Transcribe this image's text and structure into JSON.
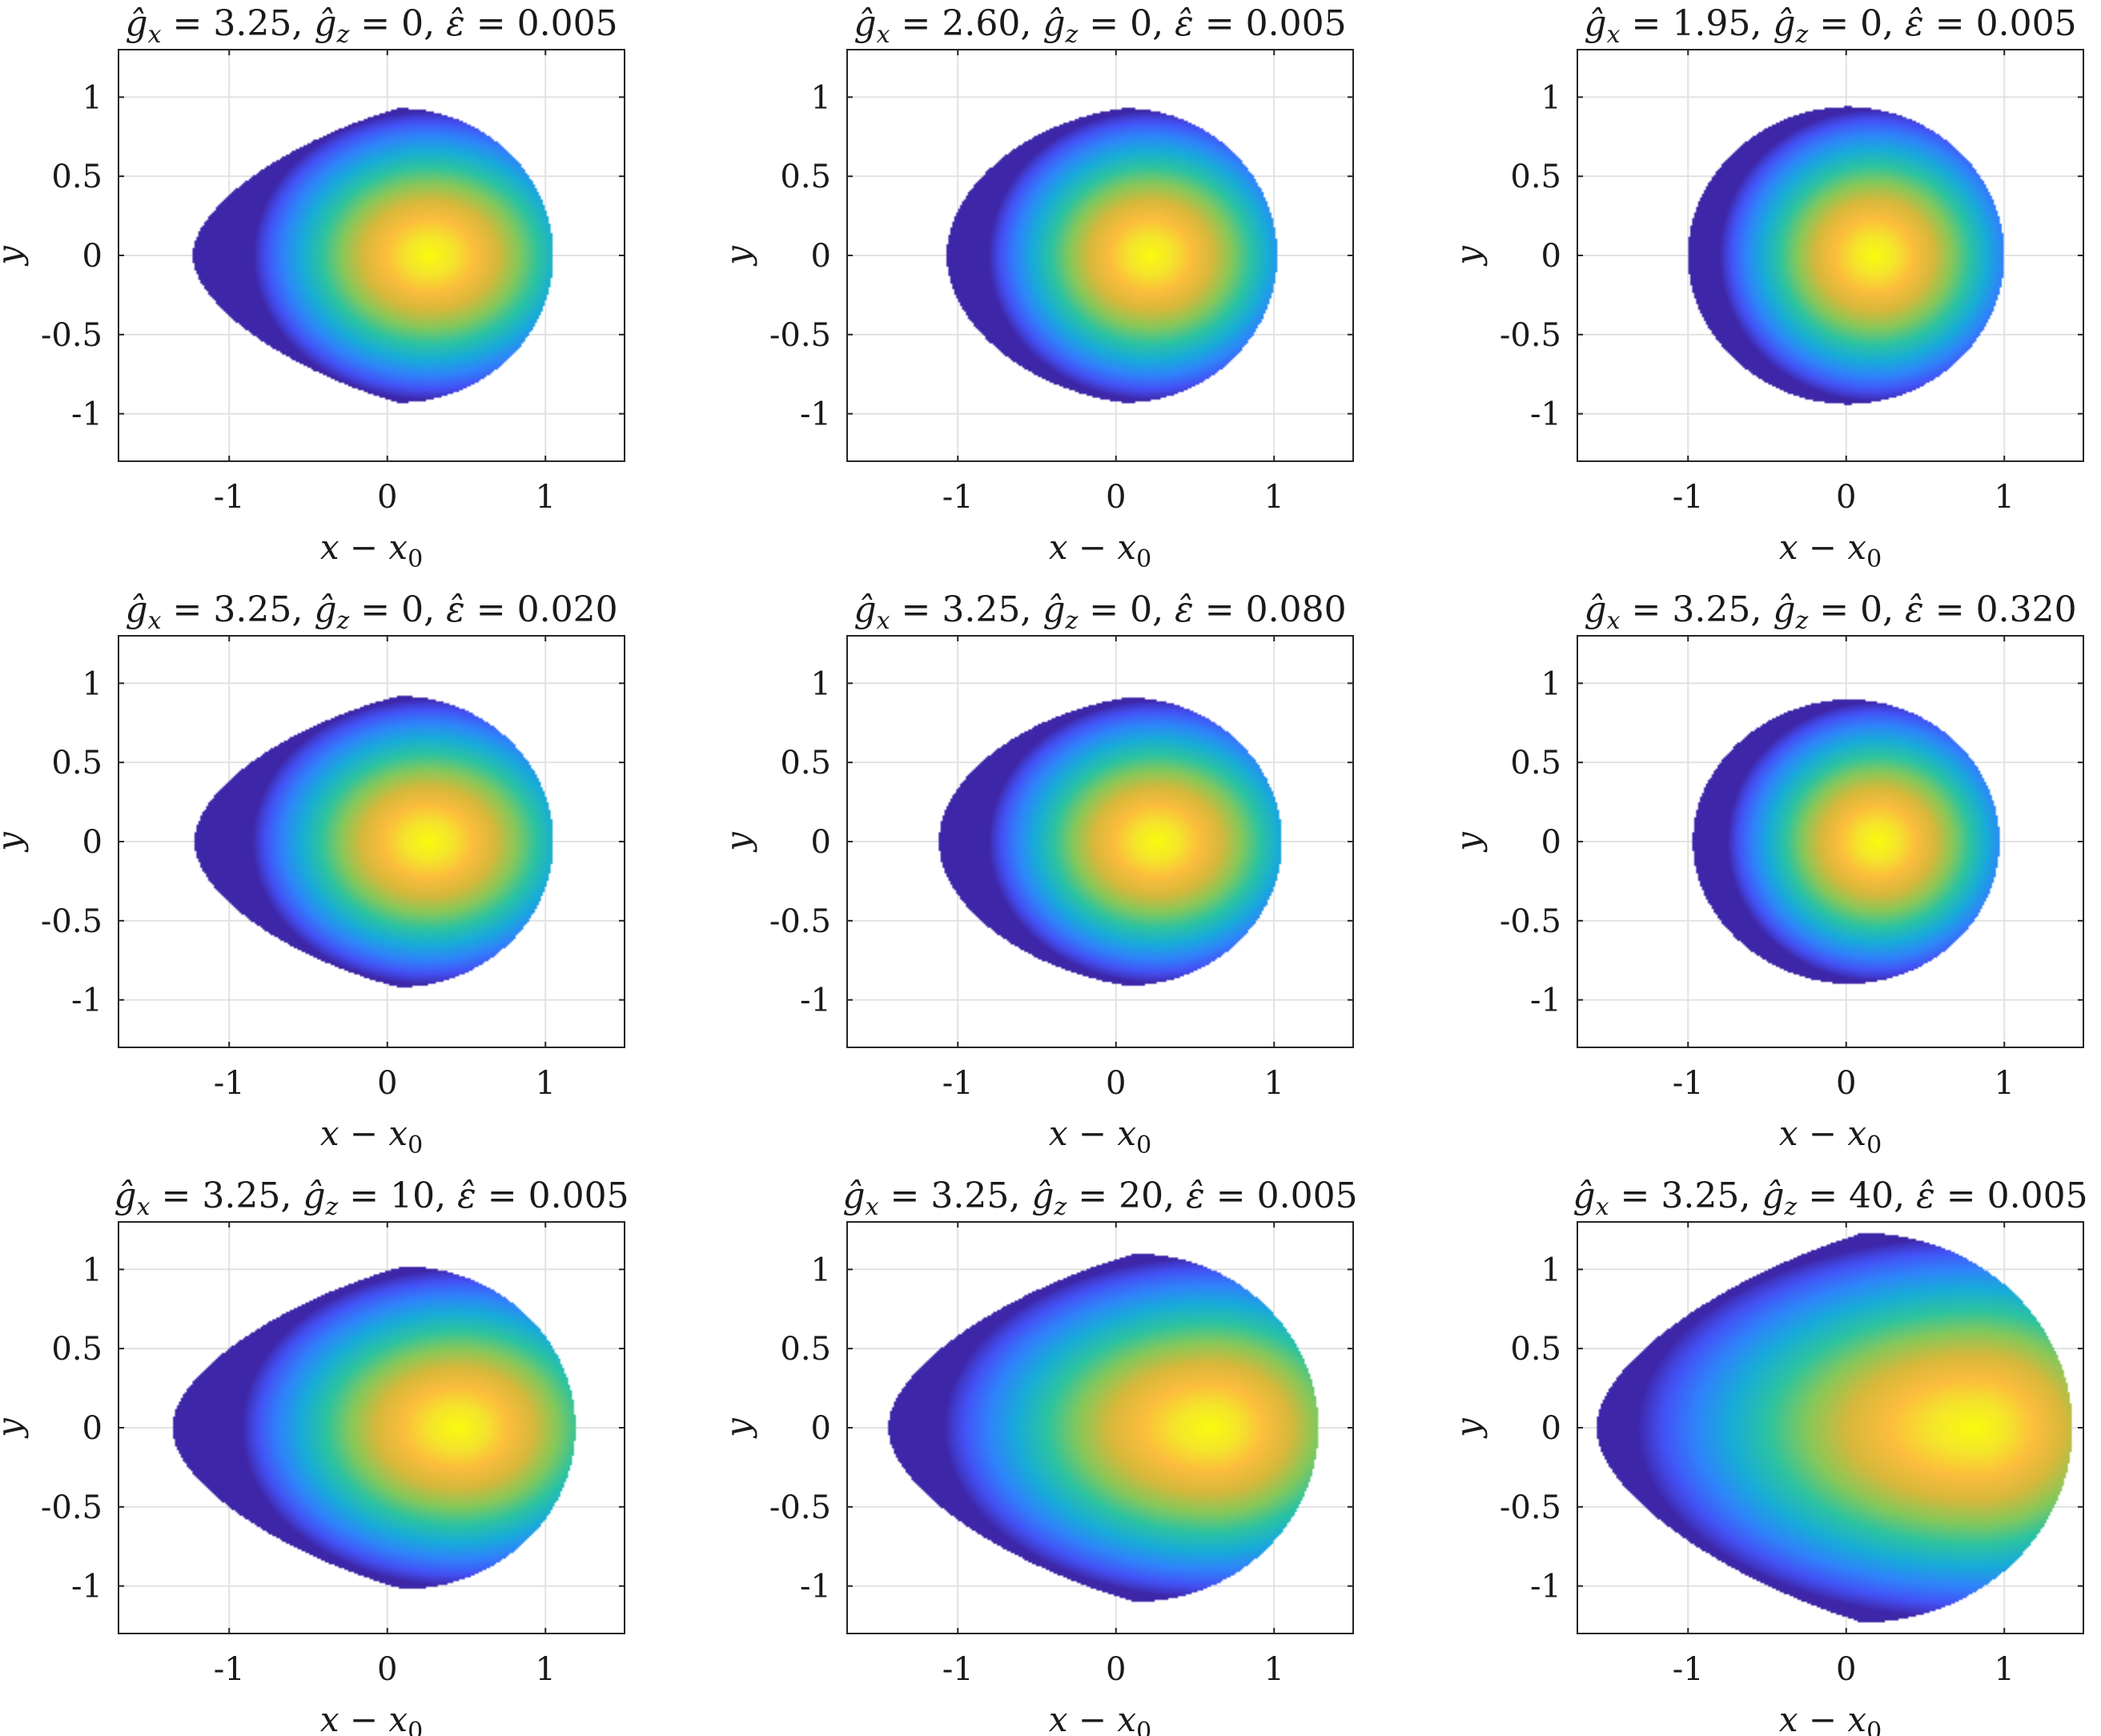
{
  "colormap": [
    "#3e26a8",
    "#4352f5",
    "#2f84fa",
    "#18acd8",
    "#2cc3a1",
    "#86c85a",
    "#d7b83b",
    "#fcbd3d",
    "#f5e62b",
    "#f9fb0e"
  ],
  "chart_data": [
    {
      "type": "heatmap",
      "title": {
        "gx": "3.25",
        "gz": "0",
        "eps": "0.005"
      },
      "xlabel": {
        "main": "x − x",
        "sub": "0"
      },
      "ylabel": "y",
      "xlim": [
        -1.7,
        1.5
      ],
      "ylim": [
        -1.3,
        1.3
      ],
      "xticks": [
        "-1",
        "0",
        "1"
      ],
      "yticks": [
        "-1",
        "-0.5",
        "0",
        "0.5",
        "1"
      ],
      "grid": true,
      "shape": {
        "x_left": -1.23,
        "x_right": 1.05,
        "x_top": 0.07,
        "y_max": 0.93,
        "cusp": 0.9,
        "peak_x": 0.27,
        "falloff": 1.0
      }
    },
    {
      "type": "heatmap",
      "title": {
        "gx": "2.60",
        "gz": "0",
        "eps": "0.005"
      },
      "xlabel": {
        "main": "x − x",
        "sub": "0"
      },
      "ylabel": "y",
      "xlim": [
        -1.7,
        1.5
      ],
      "ylim": [
        -1.3,
        1.3
      ],
      "xticks": [
        "-1",
        "0",
        "1"
      ],
      "yticks": [
        "-1",
        "-0.5",
        "0",
        "0.5",
        "1"
      ],
      "grid": true,
      "shape": {
        "x_left": -1.07,
        "x_right": 1.02,
        "x_top": 0.05,
        "y_max": 0.93,
        "cusp": 0.35,
        "peak_x": 0.22,
        "falloff": 1.0
      }
    },
    {
      "type": "heatmap",
      "title": {
        "gx": "1.95",
        "gz": "0",
        "eps": "0.005"
      },
      "xlabel": {
        "main": "x − x",
        "sub": "0"
      },
      "ylabel": "y",
      "xlim": [
        -1.7,
        1.5
      ],
      "ylim": [
        -1.3,
        1.3
      ],
      "xticks": [
        "-1",
        "0",
        "1"
      ],
      "yticks": [
        "-1",
        "-0.5",
        "0",
        "0.5",
        "1"
      ],
      "grid": true,
      "shape": {
        "x_left": -1.0,
        "x_right": 1.0,
        "x_top": 0.0,
        "y_max": 0.94,
        "cusp": 0.05,
        "peak_x": 0.18,
        "falloff": 1.0
      }
    },
    {
      "type": "heatmap",
      "title": {
        "gx": "3.25",
        "gz": "0",
        "eps": "0.020"
      },
      "xlabel": {
        "main": "x − x",
        "sub": "0"
      },
      "ylabel": "y",
      "xlim": [
        -1.7,
        1.5
      ],
      "ylim": [
        -1.3,
        1.3
      ],
      "xticks": [
        "-1",
        "0",
        "1"
      ],
      "yticks": [
        "-1",
        "-0.5",
        "0",
        "0.5",
        "1"
      ],
      "grid": true,
      "shape": {
        "x_left": -1.22,
        "x_right": 1.05,
        "x_top": 0.07,
        "y_max": 0.92,
        "cusp": 0.8,
        "peak_x": 0.26,
        "falloff": 1.0
      }
    },
    {
      "type": "heatmap",
      "title": {
        "gx": "3.25",
        "gz": "0",
        "eps": "0.080"
      },
      "xlabel": {
        "main": "x − x",
        "sub": "0"
      },
      "ylabel": "y",
      "xlim": [
        -1.7,
        1.5
      ],
      "ylim": [
        -1.3,
        1.3
      ],
      "xticks": [
        "-1",
        "0",
        "1"
      ],
      "yticks": [
        "-1",
        "-0.5",
        "0",
        "0.5",
        "1"
      ],
      "grid": true,
      "shape": {
        "x_left": -1.12,
        "x_right": 1.05,
        "x_top": 0.07,
        "y_max": 0.91,
        "cusp": 0.45,
        "peak_x": 0.26,
        "falloff": 1.0
      }
    },
    {
      "type": "heatmap",
      "title": {
        "gx": "3.25",
        "gz": "0",
        "eps": "0.320"
      },
      "xlabel": {
        "main": "x − x",
        "sub": "0"
      },
      "ylabel": "y",
      "xlim": [
        -1.7,
        1.5
      ],
      "ylim": [
        -1.3,
        1.3
      ],
      "xticks": [
        "-1",
        "0",
        "1"
      ],
      "yticks": [
        "-1",
        "-0.5",
        "0",
        "0.5",
        "1"
      ],
      "grid": true,
      "shape": {
        "x_left": -0.97,
        "x_right": 0.97,
        "x_top": 0.0,
        "y_max": 0.9,
        "cusp": 0.1,
        "peak_x": 0.2,
        "falloff": 1.0
      }
    },
    {
      "type": "heatmap",
      "title": {
        "gx": "3.25",
        "gz": "10",
        "eps": "0.005"
      },
      "xlabel": {
        "main": "x − x",
        "sub": "0"
      },
      "ylabel": "y",
      "xlim": [
        -1.7,
        1.5
      ],
      "ylim": [
        -1.3,
        1.3
      ],
      "xticks": [
        "-1",
        "0",
        "1"
      ],
      "yticks": [
        "-1",
        "-0.5",
        "0",
        "0.5",
        "1"
      ],
      "grid": true,
      "shape": {
        "x_left": -1.36,
        "x_right": 1.19,
        "x_top": 0.1,
        "y_max": 1.02,
        "cusp": 0.9,
        "peak_x": 0.45,
        "falloff": 1.2
      }
    },
    {
      "type": "heatmap",
      "title": {
        "gx": "3.25",
        "gz": "20",
        "eps": "0.005"
      },
      "xlabel": {
        "main": "x − x",
        "sub": "0"
      },
      "ylabel": "y",
      "xlim": [
        -1.7,
        1.5
      ],
      "ylim": [
        -1.3,
        1.3
      ],
      "xticks": [
        "-1",
        "0",
        "1"
      ],
      "yticks": [
        "-1",
        "-0.5",
        "0",
        "0.5",
        "1"
      ],
      "grid": true,
      "shape": {
        "x_left": -1.44,
        "x_right": 1.28,
        "x_top": 0.12,
        "y_max": 1.1,
        "cusp": 0.9,
        "peak_x": 0.6,
        "falloff": 1.6
      }
    },
    {
      "type": "heatmap",
      "title": {
        "gx": "3.25",
        "gz": "40",
        "eps": "0.005"
      },
      "xlabel": {
        "main": "x − x",
        "sub": "0"
      },
      "ylabel": "y",
      "xlim": [
        -1.7,
        1.5
      ],
      "ylim": [
        -1.3,
        1.3
      ],
      "xticks": [
        "-1",
        "0",
        "1"
      ],
      "yticks": [
        "-1",
        "-0.5",
        "0",
        "0.5",
        "1"
      ],
      "grid": true,
      "shape": {
        "x_left": -1.58,
        "x_right": 1.43,
        "x_top": 0.1,
        "y_max": 1.23,
        "cusp": 0.95,
        "peak_x": 0.82,
        "falloff": 2.1
      }
    }
  ]
}
